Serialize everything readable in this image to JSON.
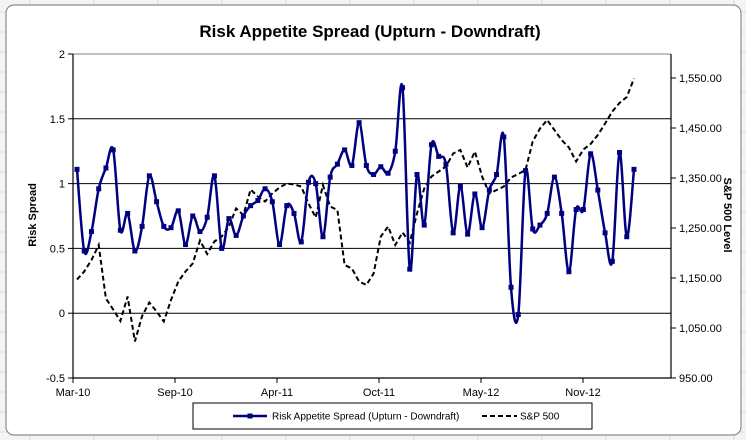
{
  "chart_data": {
    "type": "line",
    "title": "Risk Appetite Spread (Upturn - Downdraft)",
    "ylabel": "Risk Spread",
    "y2label": "S&P 500 Level",
    "ylim": [
      -0.5,
      2
    ],
    "y2lim": [
      950,
      1600
    ],
    "y_ticks": [
      "-0.5",
      "0",
      "0.5",
      "1",
      "1.5",
      "2"
    ],
    "y2_ticks": [
      "950.00",
      "1,050.00",
      "1,150.00",
      "1,250.00",
      "1,350.00",
      "1,450.00",
      "1,550.00"
    ],
    "x_tick_labels": [
      "Mar-10",
      "Sep-10",
      "Apr-11",
      "Oct-11",
      "May-12",
      "Nov-12"
    ],
    "grid": "horizontal major",
    "legend_position": "bottom",
    "series": [
      {
        "name": "Risk Appetite Spread (Upturn - Downdraft)",
        "axis": "left",
        "color": "#000080",
        "style": "smoothed line with square markers",
        "values": [
          1.11,
          0.48,
          0.63,
          0.96,
          1.12,
          1.26,
          0.64,
          0.77,
          0.48,
          0.67,
          1.06,
          0.86,
          0.67,
          0.66,
          0.79,
          0.53,
          0.75,
          0.63,
          0.74,
          1.06,
          0.5,
          0.73,
          0.6,
          0.75,
          0.83,
          0.87,
          0.96,
          0.86,
          0.53,
          0.83,
          0.77,
          0.55,
          1.01,
          1.0,
          0.59,
          1.05,
          1.15,
          1.26,
          1.14,
          1.47,
          1.14,
          1.07,
          1.13,
          1.08,
          1.25,
          1.74,
          0.34,
          1.07,
          0.68,
          1.3,
          1.21,
          1.15,
          0.62,
          0.98,
          0.61,
          0.92,
          0.66,
          0.95,
          1.07,
          1.36,
          0.2,
          -0.01,
          1.1,
          0.65,
          0.68,
          0.77,
          1.05,
          0.77,
          0.32,
          0.8,
          0.8,
          1.23,
          0.95,
          0.62,
          0.4,
          1.24,
          0.59,
          1.11
        ]
      },
      {
        "name": "S&P 500",
        "axis": "right",
        "color": "#000000",
        "style": "dashed line",
        "values": [
          1147,
          1163,
          1186,
          1216,
          1109,
          1087,
          1064,
          1113,
          1023,
          1074,
          1101,
          1083,
          1063,
          1106,
          1143,
          1163,
          1179,
          1225,
          1198,
          1223,
          1233,
          1253,
          1289,
          1276,
          1327,
          1313,
          1303,
          1319,
          1331,
          1339,
          1337,
          1333,
          1299,
          1271,
          1336,
          1293,
          1286,
          1176,
          1169,
          1143,
          1136,
          1159,
          1233,
          1253,
          1216,
          1241,
          1221,
          1279,
          1329,
          1353,
          1363,
          1373,
          1399,
          1406,
          1371,
          1403,
          1353,
          1319,
          1326,
          1333,
          1351,
          1358,
          1366,
          1423,
          1449,
          1466,
          1446,
          1426,
          1411,
          1383,
          1407,
          1418,
          1436,
          1459,
          1483,
          1500,
          1512,
          1549
        ]
      }
    ]
  }
}
